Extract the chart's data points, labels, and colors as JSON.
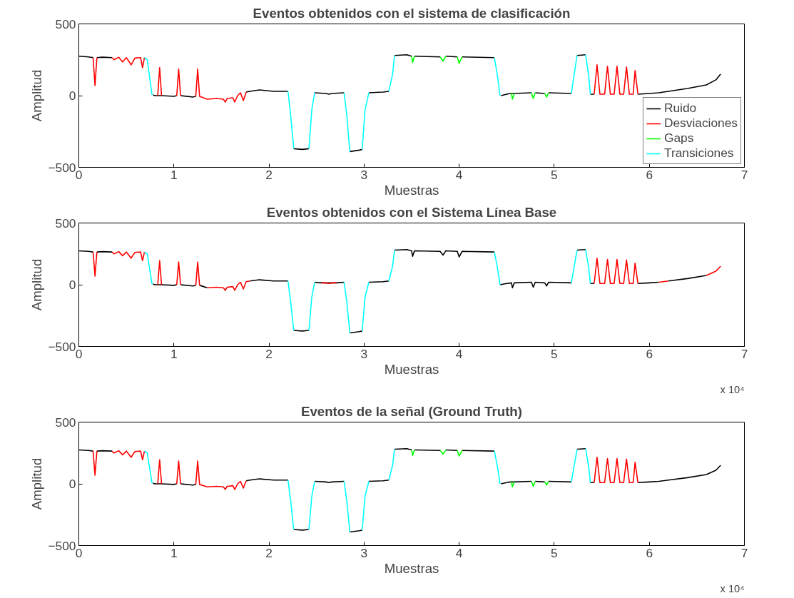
{
  "chart_data": [
    {
      "type": "line",
      "title": "Eventos obtenidos con el sistema de clasificación",
      "xlabel": "Muestras",
      "ylabel": "Amplitud",
      "xlim": [
        0,
        7
      ],
      "ylim": [
        -500,
        500
      ],
      "xticks": [
        0,
        1,
        2,
        3,
        4,
        5,
        6,
        7
      ],
      "yticks": [
        -500,
        0,
        500
      ],
      "grid": false,
      "legend": "bottom right",
      "series": [
        {
          "name": "Ruido",
          "color": "#000000",
          "x": [
            0,
            0.1,
            0.15,
            null,
            0.19,
            0.25,
            0.35,
            null,
            0.78,
            0.8,
            0.82,
            0.87,
            1.0,
            1.03,
            null,
            1.07,
            1.2,
            1.23,
            null,
            1.76,
            1.8,
            1.9,
            2.05,
            2.2,
            null,
            2.26,
            2.35,
            2.42,
            null,
            2.48,
            2.6,
            2.63,
            2.66,
            2.79,
            null,
            2.85,
            2.95,
            2.98,
            null,
            3.05,
            3.2,
            3.26,
            null,
            3.32,
            3.45,
            3.5,
            null,
            3.53,
            3.8,
            null,
            3.86,
            3.98,
            null,
            4.03,
            4.37,
            null,
            4.44,
            4.5,
            4.54,
            4.58,
            4.76,
            null,
            4.8,
            4.9,
            null,
            4.94,
            5.18,
            null,
            5.24,
            5.33,
            null,
            5.38,
            5.42,
            null,
            5.88,
            6.0,
            6.1,
            6.2,
            6.4,
            6.6,
            6.7,
            6.75
          ],
          "values": [
            275,
            270,
            265,
            null,
            265,
            268,
            265,
            null,
            5,
            0,
            0,
            0,
            -5,
            0,
            null,
            0,
            -10,
            -5,
            null,
            25,
            30,
            40,
            30,
            30,
            null,
            -370,
            -375,
            -370,
            null,
            20,
            15,
            10,
            15,
            20,
            null,
            -390,
            -380,
            -375,
            null,
            20,
            25,
            30,
            null,
            280,
            285,
            275,
            null,
            275,
            270,
            null,
            275,
            270,
            null,
            270,
            265,
            null,
            0,
            10,
            15,
            15,
            20,
            null,
            20,
            15,
            null,
            20,
            15,
            null,
            280,
            285,
            null,
            10,
            10,
            null,
            10,
            15,
            20,
            30,
            50,
            75,
            110,
            150
          ]
        },
        {
          "name": "Desviaciones",
          "color": "#ff0000",
          "x": [
            0.15,
            0.17,
            0.19,
            null,
            0.35,
            0.37,
            0.42,
            0.46,
            0.5,
            0.55,
            0.59,
            0.65,
            0.67,
            0.69,
            null,
            0.83,
            0.85,
            0.87,
            null,
            1.03,
            1.05,
            1.07,
            null,
            1.23,
            1.25,
            1.27,
            1.35,
            1.45,
            1.52,
            1.54,
            1.56,
            1.62,
            1.64,
            1.67,
            1.7,
            1.73,
            1.76,
            null,
            5.42,
            5.45,
            5.48,
            5.53,
            5.56,
            5.59,
            5.63,
            5.66,
            5.69,
            5.73,
            5.76,
            5.79,
            5.83,
            5.85,
            5.88
          ],
          "values": [
            265,
            70,
            265,
            null,
            265,
            250,
            268,
            235,
            265,
            215,
            262,
            265,
            195,
            265,
            null,
            0,
            195,
            0,
            null,
            0,
            185,
            0,
            null,
            -5,
            185,
            -5,
            -25,
            -20,
            -25,
            -45,
            -20,
            -15,
            -45,
            0,
            20,
            -35,
            25,
            null,
            10,
            215,
            10,
            10,
            205,
            10,
            10,
            205,
            10,
            10,
            200,
            10,
            10,
            175,
            10
          ]
        },
        {
          "name": "Gaps",
          "color": "#00ff00",
          "x": [
            3.5,
            3.51,
            3.53,
            null,
            3.8,
            3.83,
            3.86,
            null,
            3.98,
            4.0,
            4.03,
            null,
            4.55,
            4.56,
            4.58,
            null,
            4.76,
            4.78,
            4.8,
            null,
            4.9,
            4.92,
            4.94
          ],
          "values": [
            275,
            230,
            275,
            null,
            270,
            240,
            275,
            null,
            270,
            225,
            270,
            null,
            15,
            -25,
            15,
            null,
            20,
            -20,
            20,
            null,
            15,
            -10,
            20
          ]
        },
        {
          "name": "Transiciones",
          "color": "#00ffff",
          "x": [
            0.69,
            0.72,
            0.75,
            0.77,
            null,
            2.2,
            2.23,
            2.26,
            null,
            2.42,
            2.45,
            2.48,
            null,
            2.79,
            2.82,
            2.85,
            null,
            2.98,
            3.01,
            3.05,
            null,
            3.26,
            3.3,
            3.32,
            null,
            4.37,
            4.4,
            4.43,
            null,
            5.18,
            5.21,
            5.24,
            null,
            5.33,
            5.36,
            5.38
          ],
          "values": [
            265,
            250,
            100,
            5,
            null,
            30,
            -150,
            -370,
            null,
            -370,
            -100,
            20,
            null,
            20,
            -150,
            -390,
            null,
            -375,
            -100,
            20,
            null,
            30,
            150,
            280,
            null,
            265,
            150,
            0,
            null,
            15,
            150,
            280,
            null,
            285,
            150,
            10
          ]
        }
      ]
    },
    {
      "type": "line",
      "title": "Eventos obtenidos con el Sistema Línea Base",
      "xlabel": "Muestras",
      "ylabel": "Amplitud",
      "xlim": [
        0,
        7
      ],
      "ylim": [
        -500,
        500
      ],
      "xticks": [
        0,
        1,
        2,
        3,
        4,
        5,
        6,
        7
      ],
      "yticks": [
        -500,
        0,
        500
      ],
      "grid": false,
      "annotations": [
        "x 10⁴"
      ],
      "series": [
        {
          "color": "#000000",
          "x": [
            0,
            0.1,
            0.15,
            null,
            0.19,
            0.25,
            0.35,
            null,
            0.78,
            0.8,
            0.82,
            0.87,
            1.0,
            1.03,
            null,
            1.07,
            1.2,
            1.23,
            null,
            1.27,
            1.35,
            null,
            1.8,
            1.9,
            2.05,
            2.2,
            null,
            2.26,
            2.35,
            2.42,
            null,
            2.48,
            2.55,
            2.71,
            2.79,
            null,
            2.85,
            2.95,
            2.98,
            null,
            3.05,
            3.2,
            3.26,
            null,
            3.32,
            3.45,
            3.5,
            3.51,
            3.53,
            3.8,
            3.83,
            3.86,
            3.98,
            4.0,
            4.03,
            4.37,
            null,
            4.43,
            4.5,
            4.55,
            4.56,
            4.58,
            4.76,
            4.78,
            4.8,
            4.9,
            4.92,
            4.94,
            5.18,
            null,
            5.24,
            5.33,
            null,
            5.38,
            5.42,
            null,
            5.88,
            6.0,
            6.1,
            null,
            6.2,
            6.4,
            6.6
          ],
          "values": [
            275,
            270,
            265,
            null,
            265,
            268,
            265,
            null,
            5,
            0,
            0,
            0,
            -5,
            0,
            null,
            0,
            -10,
            -5,
            null,
            -5,
            -25,
            null,
            30,
            40,
            30,
            30,
            null,
            -370,
            -375,
            -370,
            null,
            20,
            15,
            15,
            20,
            null,
            -390,
            -380,
            -375,
            null,
            20,
            25,
            30,
            null,
            280,
            285,
            275,
            230,
            275,
            270,
            240,
            275,
            270,
            225,
            270,
            265,
            null,
            0,
            10,
            15,
            -25,
            15,
            20,
            -20,
            20,
            15,
            -10,
            20,
            15,
            null,
            280,
            285,
            null,
            10,
            10,
            null,
            10,
            15,
            20,
            null,
            30,
            50,
            75
          ]
        },
        {
          "color": "#ff0000",
          "x": [
            0.15,
            0.17,
            0.19,
            null,
            0.35,
            0.37,
            0.42,
            0.46,
            0.5,
            0.55,
            0.59,
            0.65,
            0.67,
            0.69,
            null,
            0.83,
            0.85,
            0.87,
            null,
            1.03,
            1.05,
            1.07,
            null,
            1.23,
            1.25,
            1.27,
            null,
            1.35,
            1.45,
            1.52,
            1.54,
            1.56,
            1.62,
            1.64,
            1.67,
            1.7,
            1.73,
            1.76,
            1.8,
            null,
            2.55,
            2.59,
            2.63,
            2.67,
            2.71,
            null,
            5.42,
            5.45,
            5.48,
            5.53,
            5.56,
            5.59,
            5.63,
            5.66,
            5.69,
            5.73,
            5.76,
            5.79,
            5.83,
            5.85,
            5.88,
            null,
            6.1,
            6.2,
            null,
            6.6,
            6.7,
            6.75
          ],
          "values": [
            265,
            70,
            265,
            null,
            265,
            250,
            268,
            235,
            265,
            215,
            262,
            265,
            195,
            265,
            null,
            0,
            195,
            0,
            null,
            0,
            185,
            0,
            null,
            -5,
            185,
            -5,
            null,
            -25,
            -20,
            -25,
            -45,
            -20,
            -15,
            -45,
            0,
            20,
            -35,
            25,
            30,
            null,
            15,
            15,
            10,
            15,
            15,
            null,
            10,
            215,
            10,
            10,
            205,
            10,
            10,
            205,
            10,
            10,
            200,
            10,
            10,
            175,
            10,
            null,
            20,
            30,
            null,
            75,
            110,
            150
          ]
        },
        {
          "color": "#00ffff",
          "x": [
            0.69,
            0.72,
            0.75,
            0.77,
            null,
            2.2,
            2.23,
            2.26,
            null,
            2.42,
            2.45,
            2.48,
            null,
            2.79,
            2.82,
            2.85,
            null,
            2.98,
            3.01,
            3.05,
            null,
            3.26,
            3.3,
            3.32,
            null,
            4.37,
            4.4,
            4.43,
            null,
            5.18,
            5.21,
            5.24,
            null,
            5.33,
            5.36,
            5.38
          ],
          "values": [
            265,
            250,
            100,
            5,
            null,
            30,
            -150,
            -370,
            null,
            -370,
            -100,
            20,
            null,
            20,
            -150,
            -390,
            null,
            -375,
            -100,
            20,
            null,
            30,
            150,
            280,
            null,
            265,
            150,
            0,
            null,
            15,
            150,
            280,
            null,
            285,
            150,
            10
          ]
        }
      ]
    },
    {
      "type": "line",
      "title": "Eventos de la señal (Ground Truth)",
      "xlabel": "Muestras",
      "ylabel": "Amplitud",
      "xlim": [
        0,
        7
      ],
      "ylim": [
        -500,
        500
      ],
      "xticks": [
        0,
        1,
        2,
        3,
        4,
        5,
        6,
        7
      ],
      "yticks": [
        -500,
        0,
        500
      ],
      "grid": false,
      "annotations": [
        "x 10⁴"
      ],
      "series": [
        {
          "color": "#000000",
          "x": [
            0,
            0.1,
            0.15,
            null,
            0.19,
            0.25,
            0.35,
            null,
            0.78,
            0.8,
            0.82,
            0.87,
            1.0,
            1.03,
            null,
            1.07,
            1.2,
            1.23,
            null,
            1.76,
            1.8,
            1.9,
            2.05,
            2.2,
            null,
            2.26,
            2.35,
            2.42,
            null,
            2.48,
            2.6,
            2.63,
            2.66,
            2.79,
            null,
            2.85,
            2.95,
            2.98,
            null,
            3.05,
            3.2,
            3.26,
            null,
            3.32,
            3.45,
            3.5,
            null,
            3.53,
            3.8,
            null,
            3.86,
            3.98,
            null,
            4.03,
            4.37,
            null,
            4.44,
            4.5,
            4.54,
            4.58,
            4.76,
            null,
            4.8,
            4.9,
            null,
            4.94,
            5.18,
            null,
            5.24,
            5.33,
            null,
            5.38,
            5.42,
            null,
            5.88,
            6.0,
            6.1,
            6.2,
            6.4,
            6.6,
            6.7,
            6.75
          ],
          "values": [
            275,
            270,
            265,
            null,
            265,
            268,
            265,
            null,
            5,
            0,
            0,
            0,
            -5,
            0,
            null,
            0,
            -10,
            -5,
            null,
            25,
            30,
            40,
            30,
            30,
            null,
            -370,
            -375,
            -370,
            null,
            20,
            15,
            10,
            15,
            20,
            null,
            -390,
            -380,
            -375,
            null,
            20,
            25,
            30,
            null,
            280,
            285,
            275,
            null,
            275,
            270,
            null,
            275,
            270,
            null,
            270,
            265,
            null,
            0,
            10,
            15,
            15,
            20,
            null,
            20,
            15,
            null,
            20,
            15,
            null,
            280,
            285,
            null,
            10,
            10,
            null,
            10,
            15,
            20,
            30,
            50,
            75,
            110,
            150
          ]
        },
        {
          "color": "#ff0000",
          "x": [
            0.15,
            0.17,
            0.19,
            null,
            0.35,
            0.37,
            0.42,
            0.46,
            0.5,
            0.55,
            0.59,
            0.65,
            0.67,
            0.69,
            null,
            0.83,
            0.85,
            0.87,
            null,
            1.03,
            1.05,
            1.07,
            null,
            1.23,
            1.25,
            1.27,
            1.35,
            1.45,
            1.52,
            1.54,
            1.56,
            1.62,
            1.64,
            1.67,
            1.7,
            1.73,
            1.76,
            null,
            5.42,
            5.45,
            5.48,
            5.53,
            5.56,
            5.59,
            5.63,
            5.66,
            5.69,
            5.73,
            5.76,
            5.79,
            5.83,
            5.85,
            5.88
          ],
          "values": [
            265,
            70,
            265,
            null,
            265,
            250,
            268,
            235,
            265,
            215,
            262,
            265,
            195,
            265,
            null,
            0,
            195,
            0,
            null,
            0,
            185,
            0,
            null,
            -5,
            185,
            -5,
            -25,
            -20,
            -25,
            -45,
            -20,
            -15,
            -45,
            0,
            20,
            -35,
            25,
            null,
            10,
            215,
            10,
            10,
            205,
            10,
            10,
            205,
            10,
            10,
            200,
            10,
            10,
            175,
            10
          ]
        },
        {
          "color": "#00ff00",
          "x": [
            3.5,
            3.51,
            3.53,
            null,
            3.8,
            3.83,
            3.86,
            null,
            3.98,
            4.0,
            4.03,
            null,
            4.55,
            4.56,
            4.58,
            null,
            4.76,
            4.78,
            4.8,
            null,
            4.9,
            4.92,
            4.94
          ],
          "values": [
            275,
            230,
            275,
            null,
            270,
            240,
            275,
            null,
            270,
            225,
            270,
            null,
            15,
            -25,
            15,
            null,
            20,
            -20,
            20,
            null,
            15,
            -10,
            20
          ]
        },
        {
          "color": "#00ffff",
          "x": [
            0.69,
            0.72,
            0.75,
            0.77,
            null,
            2.2,
            2.23,
            2.26,
            null,
            2.42,
            2.45,
            2.48,
            null,
            2.79,
            2.82,
            2.85,
            null,
            2.98,
            3.01,
            3.05,
            null,
            3.26,
            3.3,
            3.32,
            null,
            4.37,
            4.4,
            4.43,
            null,
            5.18,
            5.21,
            5.24,
            null,
            5.33,
            5.36,
            5.38
          ],
          "values": [
            265,
            250,
            100,
            5,
            null,
            30,
            -150,
            -370,
            null,
            -370,
            -100,
            20,
            null,
            20,
            -150,
            -390,
            null,
            -375,
            -100,
            20,
            null,
            30,
            150,
            280,
            null,
            265,
            150,
            0,
            null,
            15,
            150,
            280,
            null,
            285,
            150,
            10
          ]
        }
      ]
    }
  ]
}
